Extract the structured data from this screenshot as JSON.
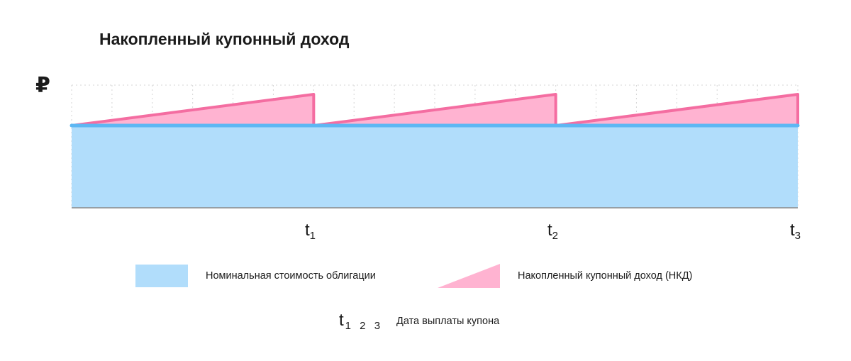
{
  "chart_data": {
    "type": "area",
    "title": "Накопленный купонный доход",
    "ylabel": "₽",
    "x_ticks": [
      {
        "base": "t",
        "sub": "1"
      },
      {
        "base": "t",
        "sub": "2"
      },
      {
        "base": "t",
        "sub": "3"
      }
    ],
    "series": [
      {
        "name": "Номинальная стоимость облигации",
        "color": "#b1ddfb",
        "line_color": "#5eb7f3"
      },
      {
        "name": "Накопленный купонный доход (НКД)",
        "color": "#ffb3d1",
        "line_color": "#f46da1"
      }
    ],
    "grid": true
  },
  "legend": {
    "nominal_label": "Номинальная стоимость облигации",
    "nkd_label": "Накопленный купонный доход (НКД)"
  },
  "note": {
    "symbol_base": "t",
    "symbol_subs": "1 2 3",
    "text": "Дата выплаты купона"
  }
}
